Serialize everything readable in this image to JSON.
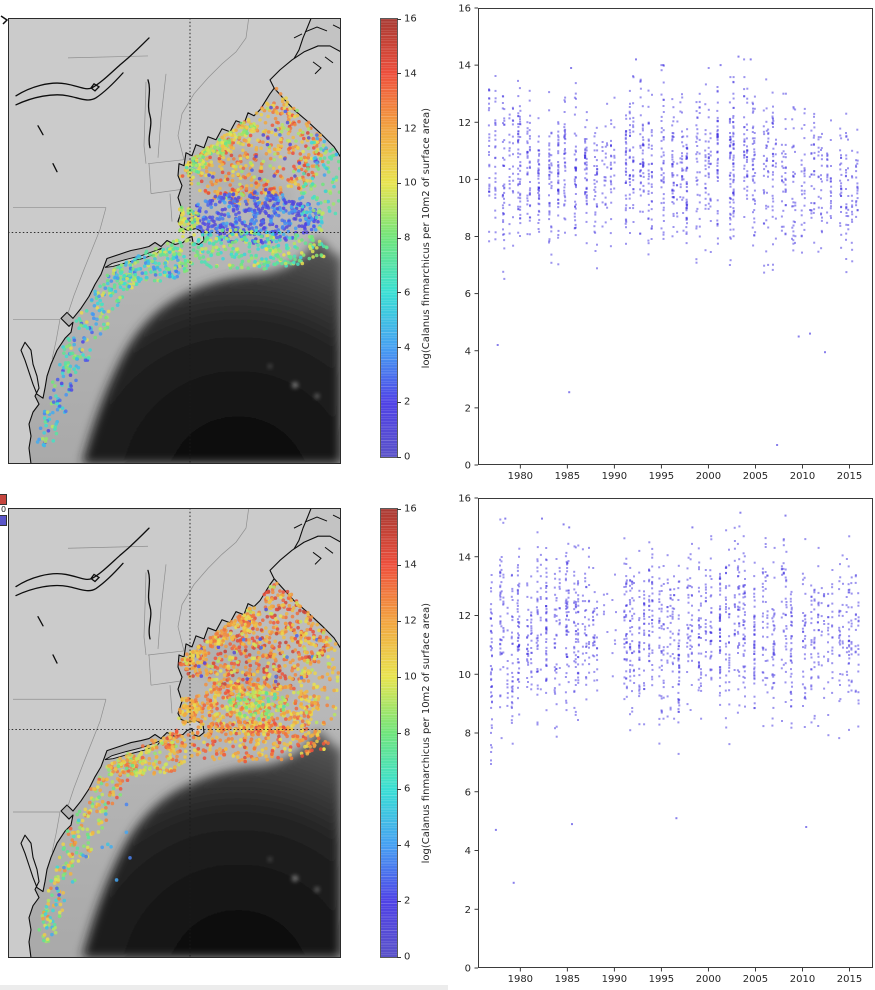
{
  "figure": {
    "fragment_zero_label": "0"
  },
  "chart_data": [
    {
      "id": "map_top",
      "type": "map_scatter",
      "seed": 42,
      "dot_radius": 1.8,
      "colorbar": {
        "min": 0,
        "max": 16,
        "ticks": [
          0,
          2,
          4,
          6,
          8,
          10,
          12,
          14,
          16
        ],
        "label": "log(Calanus finmarchicus per 10m2 of surface area)",
        "stops": [
          [
            0,
            "#5a52c8"
          ],
          [
            0.125,
            "#4f42e6"
          ],
          [
            0.25,
            "#46a0f2"
          ],
          [
            0.375,
            "#3adfd4"
          ],
          [
            0.5,
            "#70e57c"
          ],
          [
            0.625,
            "#e8e44f"
          ],
          [
            0.75,
            "#f2a440"
          ],
          [
            0.875,
            "#ee4f3c"
          ],
          [
            1,
            "#a83a33"
          ]
        ]
      },
      "crosshair": {
        "x": 182,
        "y": 215
      },
      "clusters": [
        [
          240,
          125,
          80,
          62,
          620,
          10.3,
          14.6
        ],
        [
          240,
          128,
          70,
          55,
          140,
          8.5,
          11.5
        ],
        [
          240,
          130,
          75,
          58,
          45,
          0.5,
          3.5
        ],
        [
          246,
          200,
          66,
          26,
          400,
          0.4,
          4.5
        ],
        [
          238,
          232,
          86,
          20,
          280,
          5.5,
          10.2
        ],
        [
          312,
          168,
          24,
          48,
          110,
          4,
          9.5
        ],
        [
          232,
          108,
          16,
          12,
          70,
          7.5,
          12
        ],
        [
          206,
          126,
          16,
          12,
          70,
          7.5,
          11.5
        ],
        [
          184,
          144,
          14,
          12,
          60,
          7,
          11
        ],
        [
          178,
          202,
          14,
          13,
          70,
          7,
          11
        ],
        [
          136,
          247,
          48,
          18,
          200,
          3,
          10
        ],
        [
          116,
          258,
          18,
          14,
          45,
          3.5,
          10.5
        ],
        [
          99,
          280,
          16,
          16,
          40,
          3.5,
          10.5
        ],
        [
          84,
          306,
          16,
          18,
          40,
          2,
          10.5
        ],
        [
          69,
          334,
          15,
          18,
          38,
          2,
          10.5
        ],
        [
          55,
          362,
          14,
          18,
          36,
          1.5,
          10
        ],
        [
          45,
          392,
          13,
          16,
          32,
          1.5,
          9.5
        ],
        [
          37,
          417,
          12,
          14,
          28,
          1.5,
          9.5
        ]
      ]
    },
    {
      "id": "ts_top",
      "type": "scatter",
      "seed": 7,
      "dot_color": "#3a2ae0",
      "xlim": [
        1975.5,
        2017.5
      ],
      "ylim": [
        0,
        16
      ],
      "xticks": [
        1980,
        1985,
        1990,
        1995,
        2000,
        2005,
        2010,
        2015
      ],
      "yticks": [
        0,
        2,
        4,
        6,
        8,
        10,
        12,
        14,
        16
      ],
      "columns": [
        [
          1977,
          55,
          5.3,
          13.8
        ],
        [
          1978,
          42,
          4.1,
          13.4
        ],
        [
          1979,
          30,
          5.8,
          13.2
        ],
        [
          1980,
          58,
          5.6,
          13.5
        ],
        [
          1981,
          48,
          6.2,
          13.1
        ],
        [
          1982,
          42,
          5.5,
          13.2
        ],
        [
          1983,
          48,
          5.0,
          13.3
        ],
        [
          1984,
          42,
          5.8,
          13.2
        ],
        [
          1985,
          40,
          5.6,
          13.9
        ],
        [
          1986,
          44,
          5.5,
          13.4
        ],
        [
          1987,
          48,
          6.0,
          13.1
        ],
        [
          1988,
          38,
          5.5,
          12.9
        ],
        [
          1989,
          26,
          6.2,
          12.7
        ],
        [
          1990,
          30,
          6.0,
          13.0
        ],
        [
          1991,
          38,
          5.7,
          13.3
        ],
        [
          1992,
          50,
          5.5,
          14.2
        ],
        [
          1993,
          52,
          6.0,
          13.7
        ],
        [
          1994,
          48,
          5.5,
          13.4
        ],
        [
          1995,
          48,
          5.2,
          14.0
        ],
        [
          1996,
          44,
          5.8,
          13.5
        ],
        [
          1997,
          40,
          5.5,
          13.2
        ],
        [
          1998,
          44,
          5.3,
          13.1
        ],
        [
          1999,
          40,
          5.6,
          13.4
        ],
        [
          2000,
          50,
          5.5,
          13.9
        ],
        [
          2001,
          48,
          5.8,
          14.0
        ],
        [
          2002,
          44,
          5.2,
          13.6
        ],
        [
          2003,
          52,
          5.5,
          14.3
        ],
        [
          2004,
          48,
          5.8,
          14.2
        ],
        [
          2005,
          48,
          5.5,
          13.9
        ],
        [
          2006,
          42,
          5.0,
          13.5
        ],
        [
          2007,
          40,
          5.5,
          13.3
        ],
        [
          2008,
          38,
          5.2,
          13.0
        ],
        [
          2009,
          34,
          4.6,
          12.9
        ],
        [
          2010,
          30,
          5.5,
          12.6
        ],
        [
          2011,
          34,
          5.8,
          12.8
        ],
        [
          2012,
          30,
          5.5,
          12.6
        ],
        [
          2013,
          30,
          6.0,
          12.4
        ],
        [
          2014,
          28,
          5.8,
          12.1
        ],
        [
          2015,
          44,
          4.6,
          12.3
        ],
        [
          2016,
          22,
          6.5,
          11.9
        ]
      ],
      "outliers": [
        [
          1985.2,
          2.55
        ],
        [
          2007.3,
          0.7
        ],
        [
          2009.6,
          4.5
        ],
        [
          2012.4,
          3.95
        ],
        [
          1977.6,
          4.2
        ],
        [
          2010.8,
          4.6
        ],
        [
          1992.3,
          14.2
        ],
        [
          2003.2,
          14.3
        ],
        [
          2004.5,
          14.2
        ],
        [
          1985.4,
          13.9
        ],
        [
          2001.3,
          14.0
        ],
        [
          1995.2,
          14.0
        ]
      ]
    },
    {
      "id": "map_bottom",
      "type": "map_scatter",
      "seed": 77,
      "dot_radius": 1.8,
      "colorbar": {
        "min": 0,
        "max": 16,
        "ticks": [
          0,
          2,
          4,
          6,
          8,
          10,
          12,
          14,
          16
        ],
        "label": "log(Calanus finmarchicus per 10m2 of surface area)",
        "stops": [
          [
            0,
            "#5a52c8"
          ],
          [
            0.125,
            "#4f42e6"
          ],
          [
            0.25,
            "#46a0f2"
          ],
          [
            0.375,
            "#3adfd4"
          ],
          [
            0.5,
            "#70e57c"
          ],
          [
            0.625,
            "#e8e44f"
          ],
          [
            0.75,
            "#f2a440"
          ],
          [
            0.875,
            "#ee4f3c"
          ],
          [
            1,
            "#a83a33"
          ]
        ]
      },
      "crosshair": {
        "x": 182,
        "y": 220
      },
      "clusters": [
        [
          240,
          125,
          80,
          62,
          760,
          11,
          15.2
        ],
        [
          240,
          128,
          70,
          55,
          160,
          9,
          11.5
        ],
        [
          240,
          130,
          75,
          58,
          30,
          0.5,
          3.5
        ],
        [
          246,
          200,
          66,
          26,
          420,
          9.5,
          13.8
        ],
        [
          250,
          196,
          30,
          14,
          80,
          7,
          9.8
        ],
        [
          238,
          232,
          86,
          20,
          300,
          10,
          14.5
        ],
        [
          312,
          168,
          24,
          48,
          110,
          9,
          13
        ],
        [
          232,
          108,
          16,
          12,
          70,
          10,
          13.5
        ],
        [
          206,
          126,
          16,
          12,
          70,
          10,
          13.5
        ],
        [
          184,
          144,
          14,
          12,
          60,
          9.5,
          13
        ],
        [
          178,
          202,
          14,
          13,
          70,
          9.5,
          13
        ],
        [
          136,
          247,
          48,
          18,
          200,
          8.5,
          13.5
        ],
        [
          116,
          258,
          18,
          14,
          45,
          7.5,
          14
        ],
        [
          99,
          280,
          16,
          16,
          40,
          7.5,
          14
        ],
        [
          84,
          306,
          16,
          18,
          40,
          7,
          13.5
        ],
        [
          69,
          334,
          15,
          18,
          38,
          6.5,
          13.5
        ],
        [
          55,
          362,
          14,
          18,
          36,
          6,
          13
        ],
        [
          45,
          392,
          13,
          16,
          32,
          5,
          13
        ],
        [
          37,
          417,
          12,
          14,
          28,
          4,
          12.5
        ],
        [
          80,
          330,
          45,
          85,
          18,
          1.5,
          5.5
        ]
      ]
    },
    {
      "id": "ts_bottom",
      "type": "scatter",
      "seed": 19,
      "dot_color": "#3a2ae0",
      "xlim": [
        1975.5,
        2017.5
      ],
      "ylim": [
        0,
        16
      ],
      "xticks": [
        1980,
        1985,
        1990,
        1995,
        2000,
        2005,
        2010,
        2015
      ],
      "yticks": [
        0,
        2,
        4,
        6,
        8,
        10,
        12,
        14,
        16
      ],
      "columns": [
        [
          1977,
          48,
          4.7,
          14.2
        ],
        [
          1978,
          52,
          6.0,
          15.3
        ],
        [
          1979,
          46,
          5.0,
          14.0
        ],
        [
          1980,
          52,
          6.5,
          14.5
        ],
        [
          1981,
          48,
          6.8,
          14.1
        ],
        [
          1982,
          44,
          6.2,
          15.3
        ],
        [
          1983,
          48,
          7.0,
          14.3
        ],
        [
          1984,
          48,
          6.0,
          15.1
        ],
        [
          1985,
          58,
          5.8,
          15.0
        ],
        [
          1986,
          66,
          6.3,
          14.6
        ],
        [
          1987,
          44,
          6.8,
          14.3
        ],
        [
          1988,
          34,
          7.5,
          13.8
        ],
        [
          1989,
          6,
          9.5,
          13.7
        ],
        [
          1990,
          8,
          8.0,
          13.6
        ],
        [
          1991,
          48,
          6.5,
          14.7
        ],
        [
          1992,
          52,
          6.0,
          14.1
        ],
        [
          1993,
          56,
          6.5,
          14.2
        ],
        [
          1994,
          52,
          7.0,
          14.5
        ],
        [
          1995,
          52,
          6.0,
          14.4
        ],
        [
          1996,
          48,
          6.5,
          14.8
        ],
        [
          1997,
          44,
          5.5,
          14.3
        ],
        [
          1998,
          48,
          6.8,
          15.0
        ],
        [
          1999,
          44,
          6.0,
          14.5
        ],
        [
          2000,
          52,
          6.5,
          14.7
        ],
        [
          2001,
          48,
          7.0,
          14.4
        ],
        [
          2002,
          44,
          5.8,
          14.9
        ],
        [
          2003,
          52,
          6.5,
          15.5
        ],
        [
          2004,
          48,
          6.8,
          14.7
        ],
        [
          2005,
          48,
          6.0,
          14.4
        ],
        [
          2006,
          44,
          6.5,
          14.8
        ],
        [
          2007,
          42,
          5.5,
          14.3
        ],
        [
          2008,
          44,
          6.2,
          15.4
        ],
        [
          2009,
          40,
          6.0,
          14.2
        ],
        [
          2010,
          38,
          5.8,
          14.6
        ],
        [
          2011,
          38,
          6.5,
          14.1
        ],
        [
          2012,
          34,
          6.0,
          14.3
        ],
        [
          2013,
          34,
          6.2,
          13.9
        ],
        [
          2014,
          34,
          5.8,
          14.1
        ],
        [
          2015,
          48,
          6.0,
          14.8
        ],
        [
          2016,
          28,
          6.3,
          14.3
        ]
      ],
      "outliers": [
        [
          1979.3,
          2.9
        ],
        [
          1977.4,
          4.7
        ],
        [
          2010.4,
          4.8
        ],
        [
          1985.5,
          4.9
        ],
        [
          1996.6,
          5.1
        ],
        [
          2003.4,
          15.5
        ],
        [
          2008.2,
          15.4
        ],
        [
          1982.3,
          15.3
        ],
        [
          1978.4,
          15.3
        ],
        [
          1984.6,
          15.1
        ],
        [
          1985.2,
          15.0
        ],
        [
          1998.3,
          15.0
        ]
      ]
    }
  ]
}
